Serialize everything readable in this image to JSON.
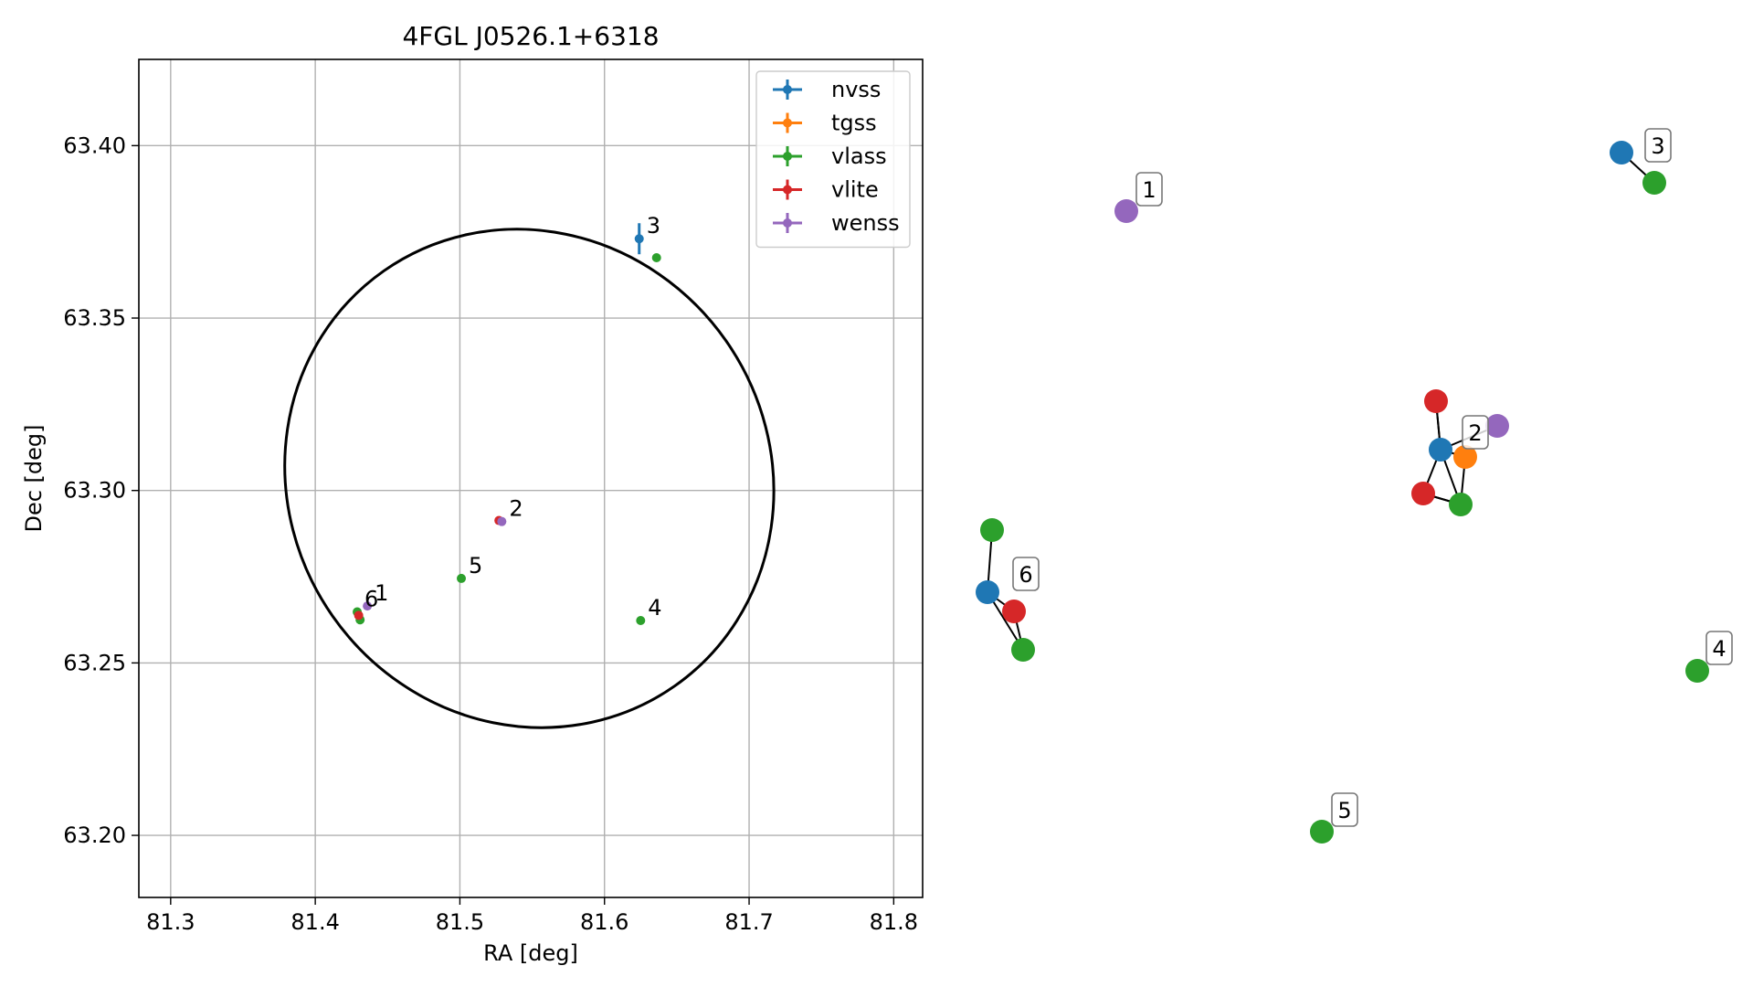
{
  "chart_data": [
    {
      "type": "scatter",
      "title": "4FGL J0526.1+6318",
      "xlabel": "RA [deg]",
      "ylabel": "Dec [deg]",
      "xlim": [
        81.278,
        81.82
      ],
      "ylim": [
        63.182,
        63.425
      ],
      "xticks": [
        81.3,
        81.4,
        81.5,
        81.6,
        81.7,
        81.8
      ],
      "xtick_labels": [
        "81.3",
        "81.4",
        "81.5",
        "81.6",
        "81.7",
        "81.8"
      ],
      "yticks": [
        63.2,
        63.25,
        63.3,
        63.35,
        63.4
      ],
      "ytick_labels": [
        "63.20",
        "63.25",
        "63.30",
        "63.35",
        "63.40"
      ],
      "grid": true,
      "legend_position": "top-right",
      "ellipse": {
        "ra": 81.548,
        "dec": 63.3035,
        "ra_semi": 0.166,
        "dec_semi": 0.0735,
        "angle_deg": -35,
        "color": "#000000"
      },
      "series": [
        {
          "name": "nvss",
          "color": "#1f77b4",
          "points": [
            {
              "ra": 81.624,
              "dec": 63.373,
              "err": 0.0045
            }
          ]
        },
        {
          "name": "tgss",
          "color": "#ff7f0e",
          "points": []
        },
        {
          "name": "vlass",
          "color": "#2ca02c",
          "points": [
            {
              "ra": 81.636,
              "dec": 63.3675
            },
            {
              "ra": 81.501,
              "dec": 63.2745
            },
            {
              "ra": 81.625,
              "dec": 63.2623
            },
            {
              "ra": 81.429,
              "dec": 63.2648
            },
            {
              "ra": 81.431,
              "dec": 63.2625
            }
          ]
        },
        {
          "name": "vlite",
          "color": "#d62728",
          "points": [
            {
              "ra": 81.43,
              "dec": 63.2638
            },
            {
              "ra": 81.527,
              "dec": 63.2913
            }
          ]
        },
        {
          "name": "wenss",
          "color": "#9467bd",
          "points": [
            {
              "ra": 81.436,
              "dec": 63.2665
            },
            {
              "ra": 81.529,
              "dec": 63.291
            }
          ]
        }
      ],
      "annotations": [
        {
          "text": "1",
          "ra": 81.436,
          "dec": 63.2665
        },
        {
          "text": "2",
          "ra": 81.529,
          "dec": 63.291
        },
        {
          "text": "3",
          "ra": 81.624,
          "dec": 63.373
        },
        {
          "text": "4",
          "ra": 81.625,
          "dec": 63.2623
        },
        {
          "text": "5",
          "ra": 81.501,
          "dec": 63.2745
        },
        {
          "text": "6",
          "ra": 81.429,
          "dec": 63.2648
        }
      ]
    },
    {
      "type": "network",
      "colors": {
        "nvss": "#1f77b4",
        "tgss": "#ff7f0e",
        "vlass": "#2ca02c",
        "vlite": "#d62728",
        "wenss": "#9467bd"
      },
      "groups": [
        {
          "label": "1",
          "nodes": [
            {
              "survey": "wenss"
            }
          ],
          "edges": []
        },
        {
          "label": "2",
          "nodes": [
            {
              "survey": "nvss"
            },
            {
              "survey": "tgss"
            },
            {
              "survey": "vlass"
            },
            {
              "survey": "vlite"
            },
            {
              "survey": "vlite"
            },
            {
              "survey": "wenss"
            }
          ],
          "edges": [
            [
              0,
              1
            ],
            [
              0,
              2
            ],
            [
              0,
              3
            ],
            [
              0,
              4
            ],
            [
              0,
              5
            ],
            [
              1,
              2
            ],
            [
              2,
              4
            ],
            [
              3,
              0
            ],
            [
              4,
              2
            ]
          ]
        },
        {
          "label": "3",
          "nodes": [
            {
              "survey": "nvss"
            },
            {
              "survey": "vlass"
            }
          ],
          "edges": [
            [
              0,
              1
            ]
          ]
        },
        {
          "label": "4",
          "nodes": [
            {
              "survey": "vlass"
            }
          ],
          "edges": []
        },
        {
          "label": "5",
          "nodes": [
            {
              "survey": "vlass"
            }
          ],
          "edges": []
        },
        {
          "label": "6",
          "nodes": [
            {
              "survey": "nvss"
            },
            {
              "survey": "vlass"
            },
            {
              "survey": "vlite"
            },
            {
              "survey": "vlass"
            }
          ],
          "edges": [
            [
              0,
              1
            ],
            [
              0,
              2
            ],
            [
              0,
              3
            ],
            [
              2,
              3
            ]
          ]
        }
      ]
    }
  ]
}
